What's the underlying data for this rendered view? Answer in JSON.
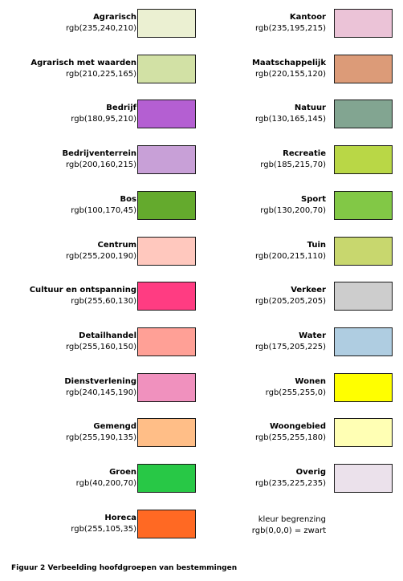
{
  "left_column": [
    {
      "name": "Agrarisch",
      "rgb": "rgb(235,240,210)",
      "color": "#EBF0D2"
    },
    {
      "name": "Agrarisch met waarden",
      "rgb": "rgb(210,225,165)",
      "color": "#D2E1A5"
    },
    {
      "name": "Bedrijf",
      "rgb": "rgb(180,95,210)",
      "color": "#B45FD2"
    },
    {
      "name": "Bedrijventerrein",
      "rgb": "rgb(200,160,215)",
      "color": "#C8A0D7"
    },
    {
      "name": "Bos",
      "rgb": "rgb(100,170,45)",
      "color": "#64AA2D"
    },
    {
      "name": "Centrum",
      "rgb": "rgb(255,200,190)",
      "color": "#FFC8BE"
    },
    {
      "name": "Cultuur en ontspanning",
      "rgb": "rgb(255,60,130)",
      "color": "#FF3C82"
    },
    {
      "name": "Detailhandel",
      "rgb": "rgb(255,160,150)",
      "color": "#FFA096"
    },
    {
      "name": "Dienstverlening",
      "rgb": "rgb(240,145,190)",
      "color": "#F091BE"
    },
    {
      "name": "Gemengd",
      "rgb": "rgb(255,190,135)",
      "color": "#FFBE87"
    },
    {
      "name": "Groen",
      "rgb": "rgb(40,200,70)",
      "color": "#28C846"
    },
    {
      "name": "Horeca",
      "rgb": "rgb(255,105,35)",
      "color": "#FF6923"
    }
  ],
  "right_column": [
    {
      "name": "Kantoor",
      "rgb": "rgb(235,195,215)",
      "color": "#EBC3D7"
    },
    {
      "name": "Maatschappelijk",
      "rgb": "rgb(220,155,120)",
      "color": "#DC9B78"
    },
    {
      "name": "Natuur",
      "rgb": "rgb(130,165,145)",
      "color": "#82A591"
    },
    {
      "name": "Recreatie",
      "rgb": "rgb(185,215,70)",
      "color": "#B9D746"
    },
    {
      "name": "Sport",
      "rgb": "rgb(130,200,70)",
      "color": "#82C846"
    },
    {
      "name": "Tuin",
      "rgb": "rgb(200,215,110)",
      "color": "#C8D76E"
    },
    {
      "name": "Verkeer",
      "rgb": "rgb(205,205,205)",
      "color": "#CDCDCD"
    },
    {
      "name": "Water",
      "rgb": "rgb(175,205,225)",
      "color": "#AFCDE1"
    },
    {
      "name": "Wonen",
      "rgb": "rgb(255,255,0)",
      "color": "#FFFF00"
    },
    {
      "name": "Woongebied",
      "rgb": "rgb(255,255,180)",
      "color": "#FFFFB4"
    },
    {
      "name": "Overig",
      "rgb": "rgb(235,225,235)",
      "color": "#EBE1EB"
    }
  ],
  "border_note": {
    "line1": "kleur begrenzing",
    "line2": "rgb(0,0,0) = zwart"
  },
  "caption": "Figuur 2 Verbeelding hoofdgroepen van bestemmingen"
}
